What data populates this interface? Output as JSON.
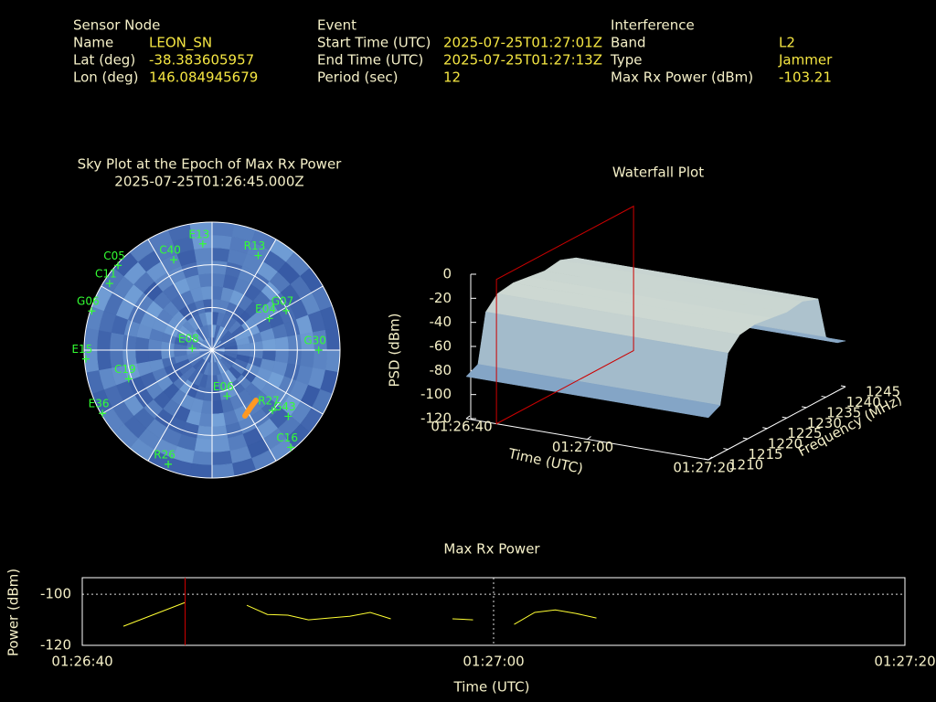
{
  "header": {
    "columns": [
      {
        "title": "Sensor Node",
        "rows": [
          [
            "Name",
            "LEON_SN"
          ],
          [
            "Lat (deg)",
            "-38.383605957"
          ],
          [
            "Lon (deg)",
            "146.084945679"
          ]
        ]
      },
      {
        "title": "Event",
        "rows": [
          [
            "Start Time (UTC)",
            "2025-07-25T01:27:01Z"
          ],
          [
            "End Time (UTC)",
            "2025-07-25T01:27:13Z"
          ],
          [
            "Period (sec)",
            "12"
          ]
        ]
      },
      {
        "title": "Interference",
        "rows": [
          [
            "Band",
            "L2"
          ],
          [
            "Type",
            "Jammer"
          ],
          [
            "Max Rx Power (dBm)",
            "-103.21"
          ]
        ]
      }
    ]
  },
  "chart_data": [
    {
      "type": "skyplot",
      "title": "Sky Plot at the Epoch of Max Rx Power",
      "subtitle": "2025-07-25T01:26:45.000Z",
      "color": "#33ff33",
      "satellites": [
        {
          "name": "E13",
          "az": 355,
          "el": 15
        },
        {
          "name": "R13",
          "az": 26,
          "el": 16
        },
        {
          "name": "C40",
          "az": 337,
          "el": 21
        },
        {
          "name": "C11",
          "az": 303,
          "el": 4
        },
        {
          "name": "G07",
          "az": 62,
          "el": 31
        },
        {
          "name": "G30",
          "az": 90,
          "el": 15
        },
        {
          "name": "E15",
          "az": 266,
          "el": 1
        },
        {
          "name": "E36",
          "az": 240,
          "el": 1
        },
        {
          "name": "R27",
          "az": 135,
          "el": 30
        },
        {
          "name": "C16",
          "az": 141,
          "el": 2
        },
        {
          "name": "R26",
          "az": 201,
          "el": 4
        },
        {
          "name": "E06",
          "az": 162,
          "el": 56
        },
        {
          "name": "G06",
          "az": 288,
          "el": 1
        },
        {
          "name": "E08",
          "az": 275,
          "el": 76
        },
        {
          "name": "E04",
          "az": 61,
          "el": 44
        },
        {
          "name": "C19",
          "az": 251,
          "el": 28
        },
        {
          "name": "G43",
          "az": 131,
          "el": 19
        },
        {
          "name": "C05",
          "az": 312,
          "el": 1
        }
      ]
    },
    {
      "type": "waterfall",
      "title": "Waterfall Plot",
      "zlabel": "PSD (dBm)",
      "xlabel": "Time (UTC)",
      "ylabel": "Frequency (MHz)",
      "xlim": [
        "01:26:40",
        "01:27:20"
      ],
      "xticks": [
        "01:26:40",
        "01:27:00",
        "01:27:20"
      ],
      "ylim": [
        1210,
        1245
      ],
      "yticks": [
        1210,
        1215,
        1220,
        1225,
        1230,
        1235,
        1240,
        1245
      ],
      "zlim": [
        -120,
        0
      ],
      "zticks": [
        0,
        -20,
        -40,
        -60,
        -80,
        -100,
        -120
      ],
      "frequency": [
        1210,
        1213,
        1215,
        1218,
        1222,
        1226,
        1230,
        1234,
        1238,
        1240,
        1243,
        1245
      ],
      "psd": [
        -85,
        -80,
        -40,
        -30,
        -28,
        -30,
        -32,
        -30,
        -35,
        -70,
        -80,
        -82
      ],
      "marker_time": "01:26:45",
      "marker_color": "#cc0000"
    },
    {
      "type": "line",
      "title": "Max Rx Power",
      "xlabel": "Time (UTC)",
      "ylabel": "Power (dBm)",
      "color": "#ffff33",
      "grid": true,
      "xlim": [
        "01:26:40",
        "01:27:20"
      ],
      "xticks": [
        "01:26:40",
        "01:27:00",
        "01:27:20"
      ],
      "ylim": [
        -120,
        -93.5
      ],
      "yticks": [
        -120,
        -100
      ],
      "x": [
        "01:26:42",
        "01:26:45",
        "01:26:46",
        "01:26:48",
        "01:26:49",
        "01:26:50",
        "01:26:51",
        "01:26:52",
        "01:26:53",
        "01:26:54",
        "01:26:55",
        "01:26:56",
        "01:26:58",
        "01:26:59",
        "01:27:00",
        "01:27:01",
        "01:27:02",
        "01:27:03",
        "01:27:04",
        "01:27:05"
      ],
      "values": [
        -112.5,
        -103.21,
        null,
        -104.3,
        -107.9,
        -108.2,
        -110,
        -109.3,
        -108.6,
        -107.1,
        -109.6,
        null,
        -109.6,
        -110,
        null,
        -111.8,
        -107.1,
        -106.1,
        -107.5,
        -109.3
      ],
      "marker_time": "01:26:45",
      "marker_color": "#cc0000"
    }
  ]
}
